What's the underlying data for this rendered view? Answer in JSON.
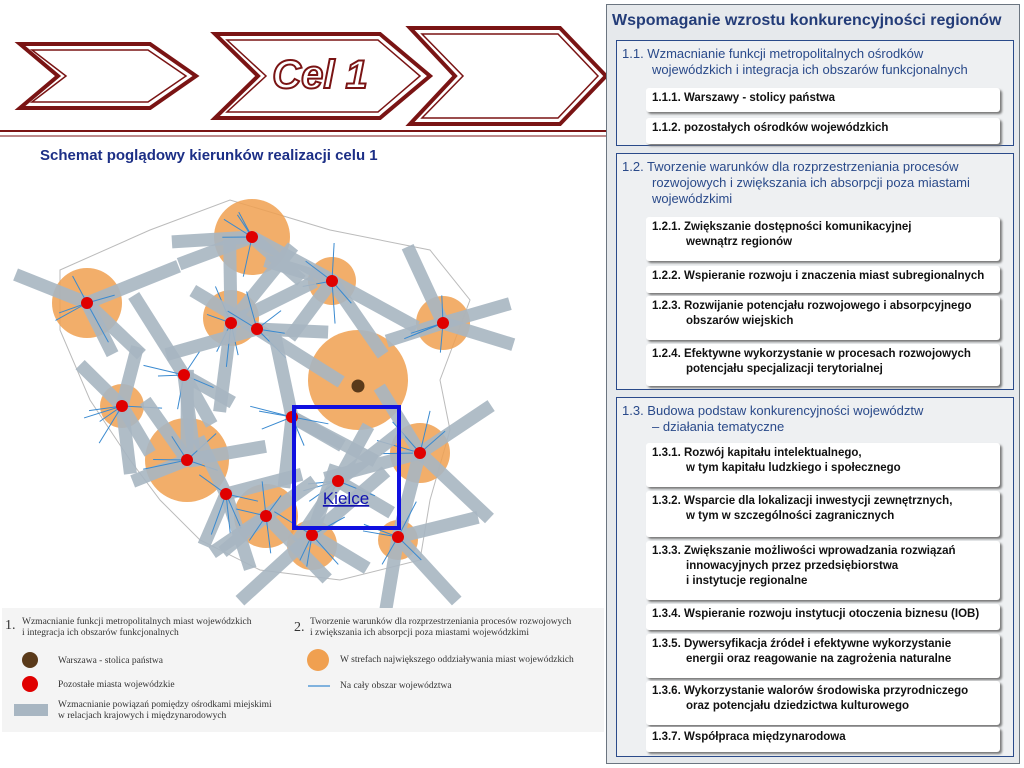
{
  "header": {
    "goal": "Cel 1",
    "subtitle": "Schemat poglądowy kierunków realizacji celu 1"
  },
  "map": {
    "label": "Kielce"
  },
  "legend": {
    "group1": {
      "number": "1.",
      "lines": [
        "Wzmacnianie funkcji metropolitalnych miast wojewódzkich",
        "i integracja ich obszarów funkcjonalnych"
      ],
      "items": [
        {
          "lines": [
            "Warszawa - stolica państwa"
          ]
        },
        {
          "lines": [
            "Pozostałe miasta wojewódzkie"
          ]
        },
        {
          "lines": [
            "Wzmacnianie powiązań pomiędzy ośrodkami miejskimi",
            "w relacjach krajowych i międzynarodowych"
          ]
        }
      ]
    },
    "group2": {
      "number": "2.",
      "lines": [
        "Tworzenie warunków dla rozprzestrzeniania procesów rozwojowych",
        "i zwiększania ich absorpcji poza miastami wojewódzkimi"
      ],
      "items": [
        {
          "lines": [
            "W strefach największego oddziaływania miast wojewódzkich"
          ]
        },
        {
          "lines": [
            "Na cały obszar województwa"
          ]
        }
      ]
    }
  },
  "panel": {
    "title": "Wspomaganie wzrostu konkurencyjności regionów",
    "sections": [
      {
        "heading": [
          "1.1. Wzmacnianie funkcji metropolitalnych ośrodków",
          "wojewódzkich i integracja ich obszarów funkcjonalnych"
        ],
        "items": [
          {
            "lines": [
              "1.1.1. Warszawy - stolicy państwa"
            ]
          },
          {
            "lines": [
              "1.1.2. pozostałych ośrodków wojewódzkich"
            ]
          }
        ]
      },
      {
        "heading": [
          "1.2. Tworzenie warunków dla rozprzestrzeniania procesów",
          "rozwojowych i zwiększania ich absorpcji poza miastami",
          "wojewódzkimi"
        ],
        "items": [
          {
            "lines": [
              "1.2.1. Zwiększanie dostępności komunikacyjnej",
              "wewnątrz regionów"
            ]
          },
          {
            "lines": [
              "1.2.2. Wspieranie rozwoju i znaczenia miast subregionalnych"
            ]
          },
          {
            "lines": [
              "1.2.3. Rozwijanie potencjału rozwojowego i absorpcyjnego",
              "obszarów wiejskich"
            ]
          },
          {
            "lines": [
              "1.2.4. Efektywne wykorzystanie w procesach rozwojowych",
              "potencjału specjalizacji terytorialnej"
            ]
          }
        ]
      },
      {
        "heading": [
          "1.3. Budowa podstaw konkurencyjności województw",
          "– działania tematyczne"
        ],
        "items": [
          {
            "lines": [
              "1.3.1. Rozwój kapitału intelektualnego,",
              "w tym kapitału ludzkiego i społecznego"
            ]
          },
          {
            "lines": [
              "1.3.2. Wsparcie dla lokalizacji inwestycji zewnętrznych,",
              "w tym w szczególności zagranicznych"
            ]
          },
          {
            "lines": [
              "1.3.3. Zwiększanie możliwości wprowadzania rozwiązań",
              "innowacyjnych przez przedsiębiorstwa",
              "i instytucje regionalne"
            ]
          },
          {
            "lines": [
              "1.3.4. Wspieranie rozwoju instytucji otoczenia biznesu (IOB)"
            ]
          },
          {
            "lines": [
              "1.3.5. Dywersyfikacja źródeł i efektywne wykorzystanie",
              "energii oraz reagowanie na zagrożenia naturalne"
            ]
          },
          {
            "lines": [
              "1.3.6. Wykorzystanie walorów środowiska przyrodniczego",
              "oraz potencjału dziedzictwa kulturowego"
            ]
          },
          {
            "lines": [
              "1.3.7. Współpraca międzynarodowa"
            ]
          }
        ]
      }
    ]
  }
}
